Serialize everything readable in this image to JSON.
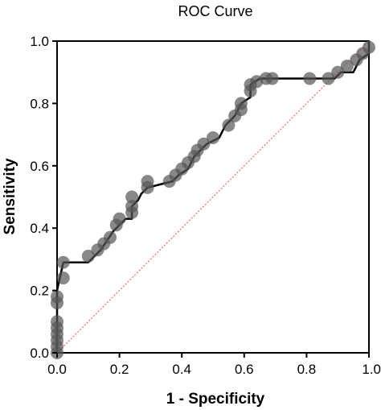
{
  "chart_data": {
    "type": "line",
    "title": "ROC Curve",
    "xlabel": "1 - Specificity",
    "ylabel": "Sensitivity",
    "xlim": [
      0,
      1
    ],
    "ylim": [
      0,
      1
    ],
    "xticks": [
      "0.0",
      "0.2",
      "0.4",
      "0.6",
      "0.8",
      "1.0"
    ],
    "yticks": [
      "0.0",
      "0.2",
      "0.4",
      "0.6",
      "0.8",
      "1.0"
    ],
    "grid": false,
    "legend": "none",
    "reference_line": {
      "from": [
        0,
        0
      ],
      "to": [
        1,
        1
      ],
      "color": "#e05050",
      "style": "dotted"
    },
    "colors": {
      "curve": "#000000",
      "points": "#555555",
      "reference": "#e05050"
    },
    "series": [
      {
        "x": [
          0.0,
          0.0,
          0.0,
          0.0,
          0.0,
          0.0,
          0.0,
          0.0,
          0.02,
          0.02,
          0.1,
          0.13,
          0.15,
          0.17,
          0.19,
          0.2,
          0.24,
          0.24,
          0.24,
          0.29,
          0.29,
          0.36,
          0.38,
          0.4,
          0.42,
          0.44,
          0.45,
          0.47,
          0.5,
          0.55,
          0.57,
          0.59,
          0.59,
          0.62,
          0.62,
          0.64,
          0.67,
          0.69,
          0.81,
          0.87,
          0.9,
          0.93,
          0.96,
          0.98,
          1.0
        ],
        "y": [
          0.0,
          0.02,
          0.04,
          0.06,
          0.08,
          0.1,
          0.16,
          0.18,
          0.24,
          0.29,
          0.31,
          0.33,
          0.35,
          0.37,
          0.41,
          0.43,
          0.45,
          0.47,
          0.5,
          0.53,
          0.55,
          0.55,
          0.57,
          0.59,
          0.61,
          0.63,
          0.65,
          0.67,
          0.69,
          0.73,
          0.76,
          0.78,
          0.8,
          0.84,
          0.86,
          0.87,
          0.88,
          0.88,
          0.88,
          0.88,
          0.9,
          0.92,
          0.94,
          0.96,
          0.98
        ]
      }
    ],
    "curve_steps": [
      [
        0.0,
        0.0
      ],
      [
        0.0,
        0.2
      ],
      [
        0.02,
        0.29
      ],
      [
        0.1,
        0.29
      ],
      [
        0.12,
        0.31
      ],
      [
        0.14,
        0.33
      ],
      [
        0.16,
        0.36
      ],
      [
        0.18,
        0.39
      ],
      [
        0.2,
        0.41
      ],
      [
        0.22,
        0.43
      ],
      [
        0.24,
        0.43
      ],
      [
        0.24,
        0.47
      ],
      [
        0.26,
        0.49
      ],
      [
        0.27,
        0.51
      ],
      [
        0.29,
        0.53
      ],
      [
        0.37,
        0.55
      ],
      [
        0.39,
        0.57
      ],
      [
        0.42,
        0.59
      ],
      [
        0.44,
        0.63
      ],
      [
        0.48,
        0.67
      ],
      [
        0.52,
        0.69
      ],
      [
        0.54,
        0.73
      ],
      [
        0.57,
        0.76
      ],
      [
        0.59,
        0.8
      ],
      [
        0.62,
        0.82
      ],
      [
        0.62,
        0.86
      ],
      [
        0.65,
        0.88
      ],
      [
        0.89,
        0.88
      ],
      [
        0.91,
        0.9
      ],
      [
        0.95,
        0.9
      ],
      [
        0.97,
        0.94
      ],
      [
        1.0,
        0.96
      ],
      [
        1.0,
        1.0
      ]
    ]
  }
}
